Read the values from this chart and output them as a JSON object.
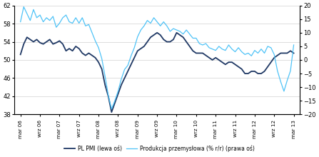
{
  "pmi_color": "#1f3864",
  "prod_color": "#4fc3f7",
  "background_color": "#ffffff",
  "grid_color": "#d0d0d0",
  "ylim_left": [
    38,
    62
  ],
  "ylim_right": [
    -20,
    20
  ],
  "yticks_left": [
    38,
    42,
    46,
    50,
    54,
    58,
    62
  ],
  "yticks_right": [
    -20,
    -15,
    -10,
    -5,
    0,
    5,
    10,
    15,
    20
  ],
  "legend_pmi": "PL PMI (lewa oś)",
  "legend_prod": "Produkcja przemysłowa (% r/r) (prawa oś)",
  "xtick_labels": [
    "mar 06",
    "wrz 06",
    "mar 07",
    "wrz 07",
    "mar 08",
    "wrz 08",
    "mar 09",
    "wrz 09",
    "mar 10",
    "wrz 10",
    "mar 11",
    "wrz 11",
    "mar 12",
    "wrz 12",
    "mar 13"
  ],
  "pmi_values": [
    51.2,
    53.5,
    55.0,
    54.5,
    54.0,
    54.5,
    53.8,
    53.5,
    54.0,
    54.5,
    53.5,
    53.8,
    54.2,
    53.5,
    52.0,
    52.5,
    52.0,
    53.0,
    52.5,
    51.5,
    51.0,
    51.5,
    51.0,
    50.5,
    49.5,
    48.0,
    44.5,
    42.0,
    38.5,
    40.5,
    42.5,
    44.5,
    46.0,
    47.5,
    49.0,
    50.5,
    52.0,
    52.5,
    53.0,
    54.0,
    55.0,
    55.5,
    56.0,
    55.5,
    54.5,
    54.0,
    54.0,
    54.5,
    56.0,
    55.5,
    55.0,
    54.0,
    53.0,
    52.0,
    51.5,
    51.5,
    51.5,
    51.0,
    50.5,
    50.0,
    50.5,
    50.0,
    49.5,
    49.0,
    49.5,
    49.5,
    49.0,
    48.5,
    48.0,
    47.0,
    47.0,
    47.5,
    47.5,
    47.0,
    47.0,
    47.5,
    48.5,
    49.5,
    50.5,
    51.0,
    51.5,
    51.5,
    51.5,
    52.0,
    51.5
  ],
  "prod_values": [
    14.0,
    19.5,
    17.0,
    14.5,
    18.5,
    15.5,
    16.5,
    14.0,
    15.5,
    14.5,
    16.0,
    12.0,
    13.5,
    15.5,
    16.5,
    14.0,
    13.5,
    15.5,
    13.5,
    15.5,
    12.5,
    13.0,
    10.0,
    7.0,
    4.5,
    0.5,
    -6.0,
    -13.0,
    -18.0,
    -15.0,
    -11.5,
    -7.0,
    -3.5,
    -2.0,
    1.5,
    4.5,
    8.5,
    11.0,
    12.5,
    14.5,
    13.5,
    15.5,
    14.0,
    12.5,
    14.0,
    12.5,
    10.5,
    11.5,
    11.0,
    10.5,
    9.5,
    11.0,
    9.5,
    8.0,
    8.0,
    6.0,
    5.5,
    6.0,
    4.5,
    4.0,
    3.5,
    5.0,
    4.0,
    3.5,
    5.5,
    4.0,
    3.0,
    4.5,
    3.0,
    2.0,
    2.5,
    1.5,
    3.5,
    2.5,
    4.0,
    2.5,
    5.0,
    4.5,
    2.0,
    -4.0,
    -8.0,
    -11.5,
    -7.5,
    -4.0,
    5.5
  ]
}
